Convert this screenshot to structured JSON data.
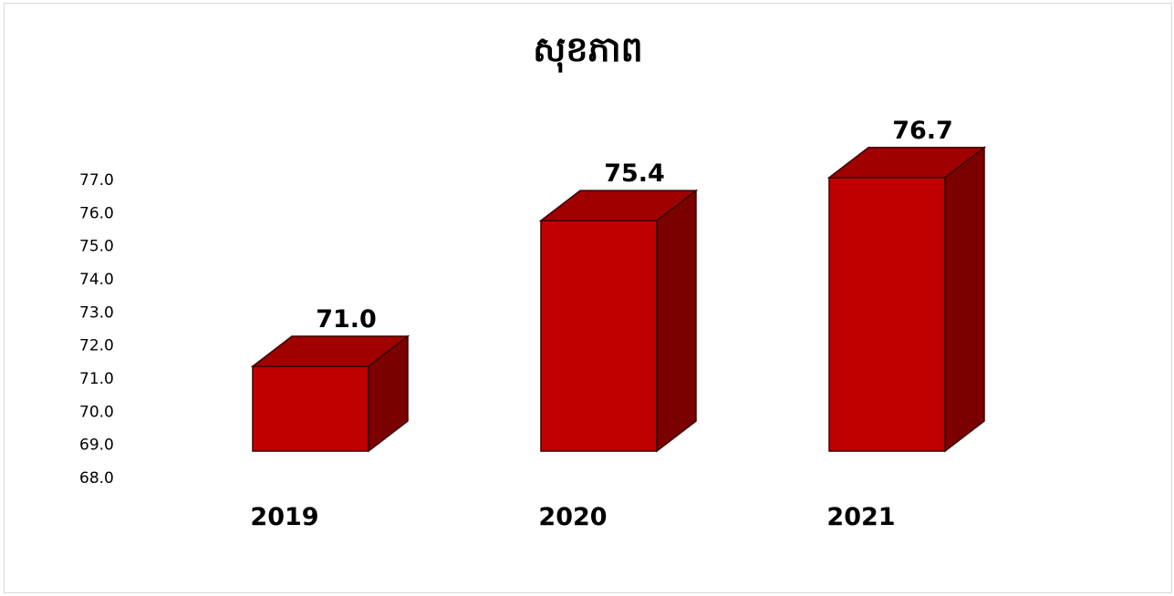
{
  "chart_data": {
    "type": "bar",
    "title": "សុខភាព",
    "categories": [
      "2019",
      "2020",
      "2021"
    ],
    "values": [
      71.0,
      75.4,
      76.7
    ],
    "data_labels": [
      "71.0",
      "75.4",
      "76.7"
    ],
    "y_tick_labels": [
      "68.0",
      "69.0",
      "70.0",
      "71.0",
      "72.0",
      "73.0",
      "74.0",
      "75.0",
      "76.0",
      "77.0"
    ],
    "ylim": [
      68.0,
      77.0
    ],
    "xlabel": "",
    "ylabel": "",
    "grid": false,
    "legend": "none",
    "bar_style": "3d",
    "colors": {
      "front": "#c00000",
      "top": "#a00000",
      "side": "#7b0000",
      "outline": "#3a0000"
    }
  }
}
